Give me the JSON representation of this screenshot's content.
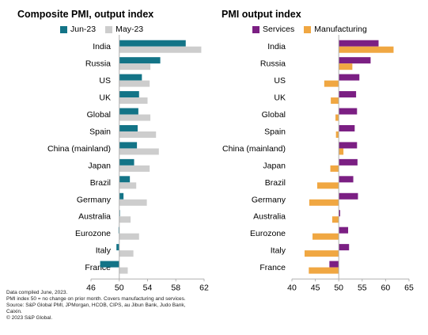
{
  "colors": {
    "primary_left": "#137487",
    "secondary_left": "#cdcdcd",
    "primary_right": "#7b1f83",
    "secondary_right": "#f0a742"
  },
  "chart_data": [
    {
      "type": "bar",
      "orientation": "horizontal",
      "title": "Composite PMI, output index",
      "categories": [
        "India",
        "Russia",
        "US",
        "UK",
        "Global",
        "Spain",
        "China (mainland)",
        "Japan",
        "Brazil",
        "Germany",
        "Australia",
        "Eurozone",
        "Italy",
        "France"
      ],
      "series": [
        {
          "name": "Jun-23",
          "values": [
            59.4,
            55.8,
            53.2,
            52.8,
            52.7,
            52.6,
            52.5,
            52.1,
            51.5,
            50.6,
            50.1,
            49.9,
            49.6,
            47.3
          ]
        },
        {
          "name": "May-23",
          "values": [
            61.6,
            54.4,
            54.3,
            54.0,
            54.4,
            55.2,
            55.6,
            54.3,
            52.4,
            53.9,
            51.6,
            52.8,
            52.0,
            51.2
          ]
        }
      ],
      "xlim": [
        46,
        62
      ],
      "xticks": [
        46,
        50,
        54,
        58,
        62
      ]
    },
    {
      "type": "bar",
      "orientation": "horizontal",
      "title": "PMI output index",
      "categories": [
        "India",
        "Russia",
        "US",
        "UK",
        "Global",
        "Spain",
        "China (mainland)",
        "Japan",
        "Brazil",
        "Germany",
        "Australia",
        "Eurozone",
        "Italy",
        "France"
      ],
      "series": [
        {
          "name": "Services",
          "values": [
            58.5,
            56.8,
            54.4,
            53.7,
            53.9,
            53.4,
            53.9,
            54.0,
            53.1,
            54.1,
            50.3,
            52.0,
            52.2,
            48.0
          ]
        },
        {
          "name": "Manufacturing",
          "values": [
            61.7,
            52.9,
            46.9,
            48.3,
            49.3,
            49.4,
            51.0,
            48.2,
            45.4,
            43.7,
            48.6,
            44.4,
            42.7,
            43.6
          ]
        }
      ],
      "xlim": [
        40,
        65
      ],
      "xticks": [
        40,
        45,
        50,
        55,
        60,
        65
      ]
    }
  ],
  "footnotes": [
    "Data compiled June, 2023.",
    "PMI index 50 = no change on prior month. Covers manufacturing and services.",
    "Source: S&P Global PMI, JPMorgan, HCOB, CIPS, au Jibun Bank, Judo Bank,",
    "Caixin.",
    "© 2023 S&P Global."
  ]
}
